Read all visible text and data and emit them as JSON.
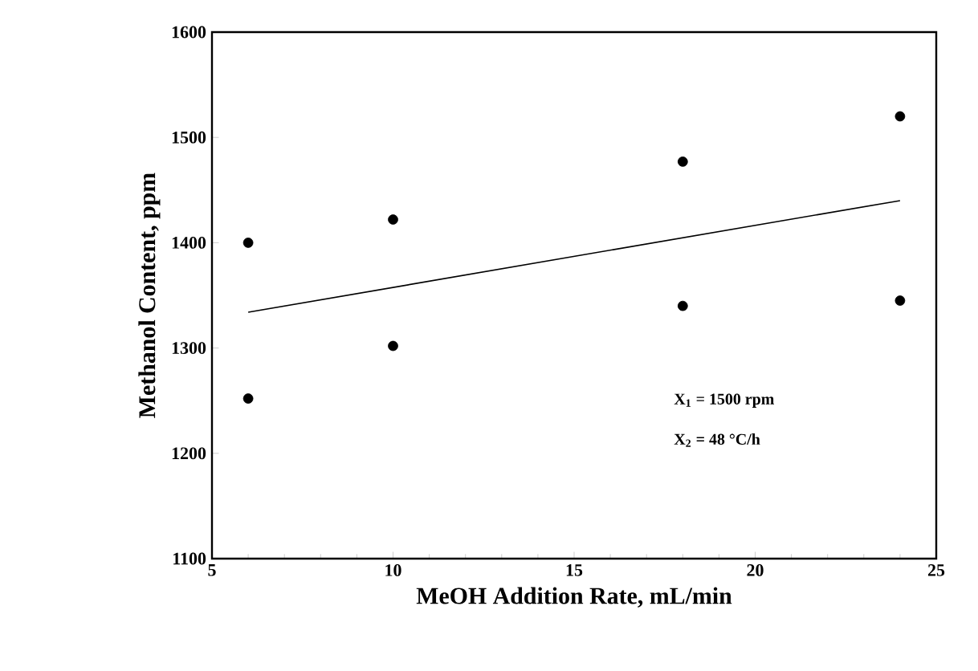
{
  "chart_data": {
    "type": "scatter",
    "xlabel": "MeOH Addition Rate, mL/min",
    "ylabel": "Methanol Content, ppm",
    "series": [
      {
        "color": "#000000",
        "marker": "circle",
        "x": [
          6,
          6,
          10,
          10,
          18,
          18,
          24,
          24
        ],
        "values": [
          1400,
          1252,
          1422,
          1302,
          1477,
          1340,
          1520,
          1345
        ]
      },
      {
        "type": "line",
        "color": "#000000",
        "marker": "none",
        "line_style": "solid",
        "x": [
          6,
          24
        ],
        "values": [
          1334,
          1440
        ]
      }
    ],
    "xlim": [
      5,
      25
    ],
    "ylim": [
      1100,
      1600
    ],
    "xticks": [
      5,
      10,
      15,
      20,
      25
    ],
    "yticks": [
      1100,
      1200,
      1300,
      1400,
      1500,
      1600
    ],
    "grid": false,
    "annotations": [
      "X$_{1}$ = 1500 rpm",
      "X$_{2}$ = 48 °C/h"
    ]
  }
}
